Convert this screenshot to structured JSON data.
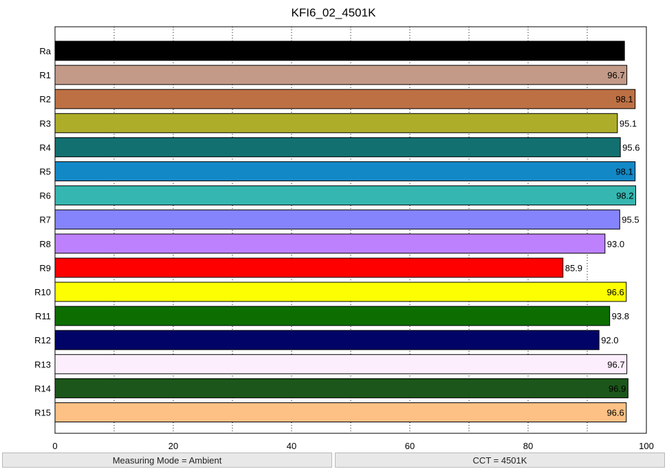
{
  "chart_data": {
    "type": "bar",
    "orientation": "horizontal",
    "title": "KFI6_02_4501K",
    "xlabel": "",
    "ylabel": "",
    "xlim": [
      0,
      100
    ],
    "x_ticks": [
      0,
      20,
      40,
      60,
      80,
      100
    ],
    "grid": "vertical dotted every 10",
    "categories": [
      "Ra",
      "R1",
      "R2",
      "R3",
      "R4",
      "R5",
      "R6",
      "R7",
      "R8",
      "R9",
      "R10",
      "R11",
      "R12",
      "R13",
      "R14",
      "R15"
    ],
    "values": [
      96.3,
      96.7,
      98.1,
      95.1,
      95.6,
      98.1,
      98.2,
      95.5,
      93.0,
      85.9,
      96.6,
      93.8,
      92.0,
      96.7,
      96.9,
      96.6
    ],
    "value_labels": [
      "96.3",
      "96.7",
      "98.1",
      "95.1",
      "95.6",
      "98.1",
      "98.2",
      "95.5",
      "93.0",
      "85.9",
      "96.6",
      "93.8",
      "92.0",
      "96.7",
      "96.9",
      "96.6"
    ],
    "colors": [
      "#000000",
      "#c39a88",
      "#bd7044",
      "#adad2a",
      "#127170",
      "#1288c7",
      "#36b6b0",
      "#8584fc",
      "#bd81fe",
      "#fe0000",
      "#fefe02",
      "#0d6d00",
      "#020367",
      "#fdeefd",
      "#1c561a",
      "#fdc085"
    ],
    "label_colors": [
      "#ffffff",
      "#000000",
      "#000000",
      "#000000",
      "#000000",
      "#000000",
      "#000000",
      "#000000",
      "#000000",
      "#000000",
      "#000000",
      "#000000",
      "#000000",
      "#000000",
      "#000000",
      "#000000"
    ]
  },
  "status": {
    "left": "Measuring Mode = Ambient",
    "right": "CCT = 4501K"
  }
}
